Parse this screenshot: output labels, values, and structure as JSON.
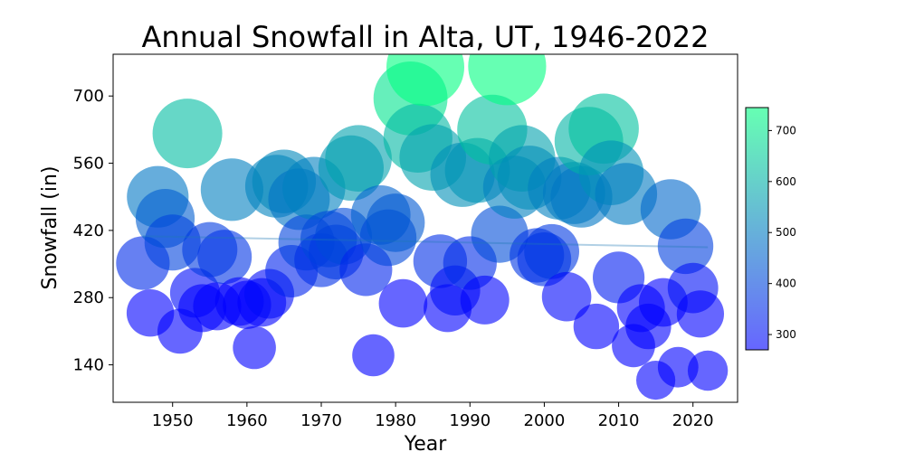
{
  "chart_data": {
    "type": "scatter",
    "title": "Annual Snowfall in Alta, UT, 1946-2022",
    "xlabel": "Year",
    "ylabel": "Snowfall (in)",
    "xlim": [
      1942,
      2026
    ],
    "ylim": [
      62,
      787
    ],
    "xticks": [
      1950,
      1960,
      1970,
      1980,
      1990,
      2000,
      2010,
      2020
    ],
    "yticks": [
      140,
      280,
      420,
      560,
      700
    ],
    "colorbar": {
      "range": [
        270,
        745
      ],
      "ticks": [
        300,
        400,
        500,
        600,
        700
      ],
      "colormap": "winter"
    },
    "trendline": {
      "x": [
        1946,
        2022
      ],
      "y": [
        408,
        385
      ],
      "color": "#1f77b4"
    },
    "points": [
      {
        "x": 1946,
        "y": 352
      },
      {
        "x": 1947,
        "y": 248
      },
      {
        "x": 1948,
        "y": 490
      },
      {
        "x": 1949,
        "y": 445
      },
      {
        "x": 1950,
        "y": 395
      },
      {
        "x": 1951,
        "y": 210
      },
      {
        "x": 1952,
        "y": 622
      },
      {
        "x": 1953,
        "y": 290
      },
      {
        "x": 1954,
        "y": 258
      },
      {
        "x": 1955,
        "y": 380
      },
      {
        "x": 1956,
        "y": 262
      },
      {
        "x": 1957,
        "y": 365
      },
      {
        "x": 1958,
        "y": 505
      },
      {
        "x": 1959,
        "y": 272
      },
      {
        "x": 1960,
        "y": 265
      },
      {
        "x": 1961,
        "y": 176
      },
      {
        "x": 1962,
        "y": 270
      },
      {
        "x": 1963,
        "y": 288
      },
      {
        "x": 1964,
        "y": 512
      },
      {
        "x": 1965,
        "y": 522
      },
      {
        "x": 1966,
        "y": 335
      },
      {
        "x": 1967,
        "y": 485
      },
      {
        "x": 1968,
        "y": 395
      },
      {
        "x": 1969,
        "y": 508
      },
      {
        "x": 1970,
        "y": 358
      },
      {
        "x": 1971,
        "y": 402
      },
      {
        "x": 1972,
        "y": 375
      },
      {
        "x": 1973,
        "y": 408
      },
      {
        "x": 1974,
        "y": 550
      },
      {
        "x": 1975,
        "y": 570
      },
      {
        "x": 1976,
        "y": 338
      },
      {
        "x": 1977,
        "y": 160
      },
      {
        "x": 1978,
        "y": 452
      },
      {
        "x": 1979,
        "y": 405
      },
      {
        "x": 1980,
        "y": 436
      },
      {
        "x": 1981,
        "y": 268
      },
      {
        "x": 1982,
        "y": 695
      },
      {
        "x": 1983,
        "y": 612
      },
      {
        "x": 1984,
        "y": 760
      },
      {
        "x": 1985,
        "y": 572
      },
      {
        "x": 1986,
        "y": 356
      },
      {
        "x": 1987,
        "y": 258
      },
      {
        "x": 1988,
        "y": 295
      },
      {
        "x": 1989,
        "y": 536
      },
      {
        "x": 1990,
        "y": 352
      },
      {
        "x": 1991,
        "y": 545
      },
      {
        "x": 1992,
        "y": 275
      },
      {
        "x": 1993,
        "y": 630
      },
      {
        "x": 1994,
        "y": 412
      },
      {
        "x": 1995,
        "y": 762
      },
      {
        "x": 1996,
        "y": 510
      },
      {
        "x": 1997,
        "y": 570
      },
      {
        "x": 1998,
        "y": 530
      },
      {
        "x": 1999,
        "y": 368
      },
      {
        "x": 2000,
        "y": 360
      },
      {
        "x": 2001,
        "y": 376
      },
      {
        "x": 2002,
        "y": 508
      },
      {
        "x": 2003,
        "y": 282
      },
      {
        "x": 2004,
        "y": 498
      },
      {
        "x": 2005,
        "y": 490
      },
      {
        "x": 2006,
        "y": 606
      },
      {
        "x": 2007,
        "y": 220
      },
      {
        "x": 2008,
        "y": 632
      },
      {
        "x": 2009,
        "y": 540
      },
      {
        "x": 2010,
        "y": 322
      },
      {
        "x": 2011,
        "y": 496
      },
      {
        "x": 2012,
        "y": 180
      },
      {
        "x": 2013,
        "y": 258
      },
      {
        "x": 2014,
        "y": 220
      },
      {
        "x": 2015,
        "y": 108
      },
      {
        "x": 2016,
        "y": 270
      },
      {
        "x": 2017,
        "y": 464
      },
      {
        "x": 2018,
        "y": 135
      },
      {
        "x": 2019,
        "y": 387
      },
      {
        "x": 2020,
        "y": 300
      },
      {
        "x": 2021,
        "y": 246
      },
      {
        "x": 2022,
        "y": 128
      }
    ]
  }
}
